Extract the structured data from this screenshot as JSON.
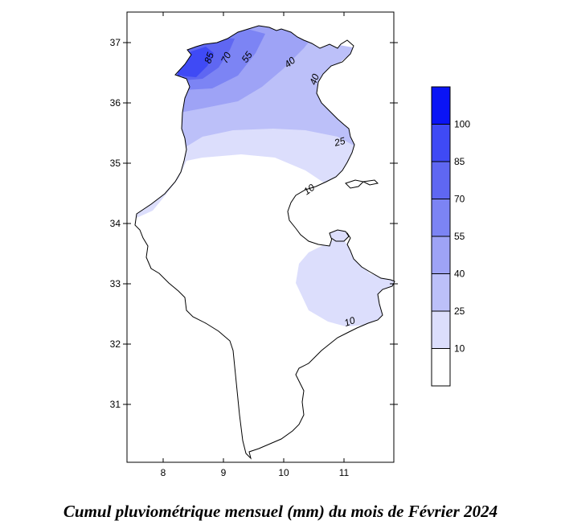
{
  "map": {
    "x_ticks": [
      "8",
      "9",
      "10",
      "11"
    ],
    "y_ticks": [
      "37",
      "36",
      "35",
      "34",
      "33",
      "32",
      "31"
    ],
    "contour_labels": [
      "85",
      "70",
      "55",
      "40",
      "40",
      "25",
      "10",
      "10"
    ]
  },
  "legend": {
    "levels": [
      {
        "label": "100",
        "color": "#0a14f5"
      },
      {
        "label": "85",
        "color": "#3f4af5"
      },
      {
        "label": "70",
        "color": "#5f67f2"
      },
      {
        "label": "55",
        "color": "#7c84f4"
      },
      {
        "label": "40",
        "color": "#9ea3f6"
      },
      {
        "label": "25",
        "color": "#bcc0f9"
      },
      {
        "label": "10",
        "color": "#dcdefc"
      }
    ],
    "lowest_color": "#ffffff"
  },
  "caption": "Cumul pluviométrique mensuel (mm) du mois de Février 2024"
}
